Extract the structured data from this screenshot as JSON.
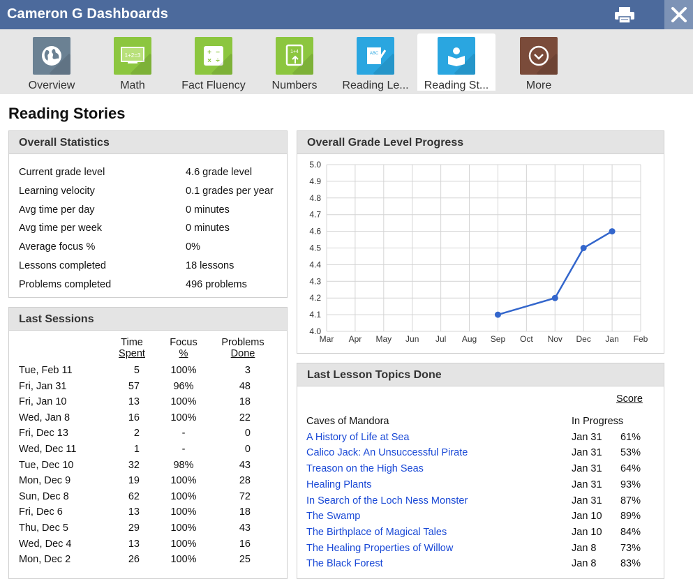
{
  "window": {
    "title": "Cameron G Dashboards"
  },
  "tabs": [
    {
      "label": "Overview",
      "color": "#6b8193",
      "icon": "globe-icon"
    },
    {
      "label": "Math",
      "color": "#8cc63f",
      "icon": "chalkboard-icon"
    },
    {
      "label": "Fact Fluency",
      "color": "#8cc63f",
      "icon": "operators-icon"
    },
    {
      "label": "Numbers",
      "color": "#8cc63f",
      "icon": "number-tablet-icon"
    },
    {
      "label": "Reading Le...",
      "color": "#2aa6e0",
      "icon": "abc-notepad-icon"
    },
    {
      "label": "Reading St...",
      "color": "#2aa6e0",
      "icon": "reader-icon",
      "active": true
    },
    {
      "label": "More",
      "color": "#7a4b3a",
      "icon": "chevron-circle-icon"
    }
  ],
  "page": {
    "title": "Reading Stories"
  },
  "overall_statistics": {
    "title": "Overall Statistics",
    "rows": [
      {
        "label": "Current grade level",
        "value": "4.6 grade level"
      },
      {
        "label": "Learning velocity",
        "value": "0.1 grades per year"
      },
      {
        "label": "Avg time per day",
        "value": "0 minutes"
      },
      {
        "label": "Avg time per week",
        "value": "0 minutes"
      },
      {
        "label": "Average focus %",
        "value": "0%"
      },
      {
        "label": "Lessons completed",
        "value": "18 lessons"
      },
      {
        "label": "Problems completed",
        "value": "496 problems"
      }
    ]
  },
  "last_sessions": {
    "title": "Last Sessions",
    "headers": {
      "time": [
        "Time",
        "Spent"
      ],
      "focus": [
        "Focus",
        "%"
      ],
      "problems": [
        "Problems",
        "Done"
      ]
    },
    "rows": [
      {
        "date": "Tue, Feb 11",
        "time": "5",
        "focus": "100%",
        "problems": "3"
      },
      {
        "date": "Fri, Jan 31",
        "time": "57",
        "focus": "96%",
        "problems": "48"
      },
      {
        "date": "Fri, Jan 10",
        "time": "13",
        "focus": "100%",
        "problems": "18"
      },
      {
        "date": "Wed, Jan 8",
        "time": "16",
        "focus": "100%",
        "problems": "22"
      },
      {
        "date": "Fri, Dec 13",
        "time": "2",
        "focus": "-",
        "problems": "0"
      },
      {
        "date": "Wed, Dec 11",
        "time": "1",
        "focus": "-",
        "problems": "0"
      },
      {
        "date": "Tue, Dec 10",
        "time": "32",
        "focus": "98%",
        "problems": "43"
      },
      {
        "date": "Mon, Dec 9",
        "time": "19",
        "focus": "100%",
        "problems": "28"
      },
      {
        "date": "Sun, Dec 8",
        "time": "62",
        "focus": "100%",
        "problems": "72"
      },
      {
        "date": "Fri, Dec 6",
        "time": "13",
        "focus": "100%",
        "problems": "18"
      },
      {
        "date": "Thu, Dec 5",
        "time": "29",
        "focus": "100%",
        "problems": "43"
      },
      {
        "date": "Wed, Dec 4",
        "time": "13",
        "focus": "100%",
        "problems": "16"
      },
      {
        "date": "Mon, Dec 2",
        "time": "26",
        "focus": "100%",
        "problems": "25"
      }
    ]
  },
  "grade_progress": {
    "title": "Overall Grade Level Progress"
  },
  "chart_data": {
    "type": "line",
    "title": "Overall Grade Level Progress",
    "categories": [
      "Mar",
      "Apr",
      "May",
      "Jun",
      "Jul",
      "Aug",
      "Sep",
      "Oct",
      "Nov",
      "Dec",
      "Jan",
      "Feb"
    ],
    "series": [
      {
        "x": [
          "Sep",
          "Nov",
          "Dec",
          "Jan"
        ],
        "values": [
          4.1,
          4.2,
          4.5,
          4.6
        ],
        "color": "#3366cc"
      }
    ],
    "yticks": [
      "4.0",
      "4.1",
      "4.2",
      "4.3",
      "4.4",
      "4.5",
      "4.6",
      "4.7",
      "4.8",
      "4.9",
      "5.0"
    ],
    "ylim": [
      4.0,
      5.0
    ],
    "grid": true
  },
  "last_topics": {
    "title": "Last Lesson Topics Done",
    "score_header": "Score",
    "rows": [
      {
        "name": "Caves of Mandora",
        "date": "In Progress",
        "score": "",
        "link": false
      },
      {
        "name": "A History of Life at Sea",
        "date": "Jan 31",
        "score": "61%",
        "link": true
      },
      {
        "name": "Calico Jack: An Unsuccessful Pirate",
        "date": "Jan 31",
        "score": "53%",
        "link": true
      },
      {
        "name": "Treason on the High Seas",
        "date": "Jan 31",
        "score": "64%",
        "link": true
      },
      {
        "name": "Healing Plants",
        "date": "Jan 31",
        "score": "93%",
        "link": true
      },
      {
        "name": "In Search of the Loch Ness Monster",
        "date": "Jan 31",
        "score": "87%",
        "link": true
      },
      {
        "name": "The Swamp",
        "date": "Jan 10",
        "score": "89%",
        "link": true
      },
      {
        "name": "The Birthplace of Magical Tales",
        "date": "Jan 10",
        "score": "84%",
        "link": true
      },
      {
        "name": "The Healing Properties of Willow",
        "date": "Jan 8",
        "score": "73%",
        "link": true
      },
      {
        "name": "The Black Forest",
        "date": "Jan 8",
        "score": "83%",
        "link": true
      }
    ]
  }
}
